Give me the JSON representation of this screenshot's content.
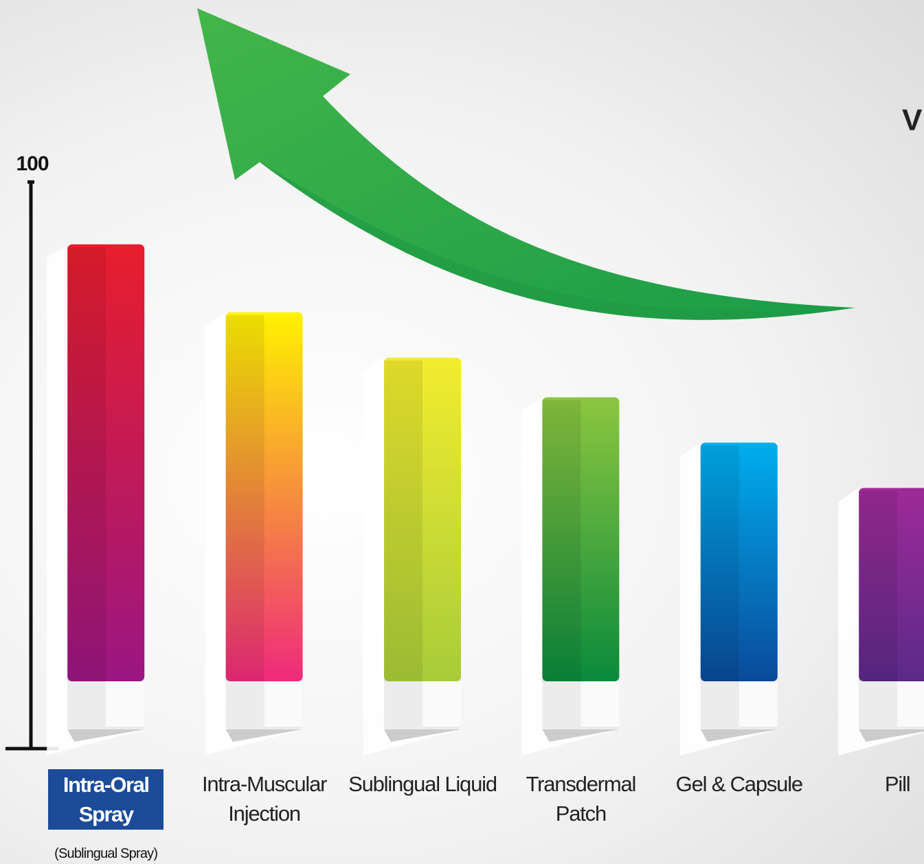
{
  "chart_data": {
    "type": "bar",
    "annotation": "V",
    "categories": [
      "Intra-Oral Spray",
      "Intra-Muscular Injection",
      "Sublingual Liquid",
      "Transdermal Patch",
      "Gel & Capsule",
      "Pill"
    ],
    "category_note": "(Sublingual Spray)",
    "highlight_index": 0,
    "values": [
      89,
      77,
      69,
      62,
      54,
      46
    ],
    "colors": [
      [
        "#e81e2c",
        "#9a1682"
      ],
      [
        "#fff200",
        "#ee2a7b"
      ],
      [
        "#f2ec2e",
        "#a8cc3a"
      ],
      [
        "#8cc63f",
        "#0a8a3c"
      ],
      [
        "#00aeef",
        "#0a4a9a"
      ],
      [
        "#9e2a98",
        "#5b2a88"
      ]
    ],
    "ylim": [
      0,
      100
    ],
    "yticks": [
      100
    ]
  }
}
